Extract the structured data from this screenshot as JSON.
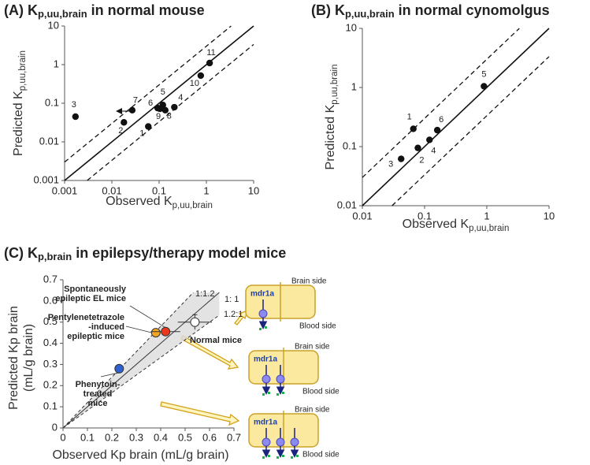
{
  "chart_data": [
    {
      "type": "log-scatter",
      "title": {
        "prefix": "(A) K",
        "subscript": "p,uu,brain",
        "suffix": " in normal mouse"
      },
      "x_label": {
        "text": "Observed K",
        "subscript": "p,uu,brain"
      },
      "y_label": {
        "text": "Predicted K",
        "subscript": "p,uu,brain"
      },
      "log_scale": true,
      "xlim": [
        0.001,
        10
      ],
      "ylim": [
        0.001,
        10
      ],
      "xticks": [
        0.001,
        0.01,
        0.1,
        1,
        10
      ],
      "yticks": [
        0.001,
        0.01,
        0.1,
        1,
        10
      ],
      "x": [
        0.059,
        0.018,
        0.0017,
        0.21,
        0.12,
        0.093,
        0.027,
        0.135,
        0.104,
        0.76,
        1.17
      ],
      "values": [
        0.025,
        0.032,
        0.045,
        0.079,
        0.09,
        0.075,
        0.066,
        0.066,
        0.072,
        0.52,
        1.1
      ],
      "point_labels": [
        "1",
        "2",
        "3",
        "4",
        "5",
        "6",
        "7",
        "8",
        "9",
        "10",
        "11"
      ],
      "color": "#111111",
      "reference_lines": [
        {
          "fold": 1,
          "style": "solid"
        },
        {
          "fold": 3,
          "style": "dashed"
        },
        {
          "fold": 0.333,
          "style": "dashed"
        }
      ]
    },
    {
      "type": "log-scatter",
      "title": {
        "prefix": "(B) K",
        "subscript": "p,uu,brain",
        "suffix": " in normal cynomolgus"
      },
      "x_label": {
        "text": "Observed K",
        "subscript": "p,uu,brain"
      },
      "y_label": {
        "text": "Predicted K",
        "subscript": "p,uu,brain"
      },
      "log_scale": true,
      "xlim": [
        0.01,
        10
      ],
      "ylim": [
        0.01,
        10
      ],
      "xticks": [
        0.01,
        0.1,
        1,
        10
      ],
      "yticks": [
        0.01,
        0.1,
        1,
        10
      ],
      "x": [
        0.066,
        0.078,
        0.042,
        0.12,
        0.9,
        0.16
      ],
      "values": [
        0.2,
        0.095,
        0.062,
        0.13,
        1.05,
        0.19
      ],
      "point_labels": [
        "1",
        "2",
        "3",
        "4",
        "5",
        "6"
      ],
      "color": "#111111",
      "reference_lines": [
        {
          "fold": 1,
          "style": "solid"
        },
        {
          "fold": 3,
          "style": "dashed"
        },
        {
          "fold": 0.333,
          "style": "dashed"
        }
      ]
    },
    {
      "type": "error-scatter",
      "title": {
        "prefix": "(C) K",
        "subscript": "p,brain",
        "suffix": " in epilepsy/therapy model mice"
      },
      "x_label": "Observed Kp brain (mL/g brain)",
      "y_label": [
        "Predicted Kp brain",
        "(mL/g brain)"
      ],
      "xlim": [
        0,
        0.7
      ],
      "ylim": [
        0,
        0.7
      ],
      "xticks": [
        0,
        0.1,
        0.2,
        0.3,
        0.4,
        0.5,
        0.6,
        0.7
      ],
      "yticks": [
        0,
        0.1,
        0.2,
        0.3,
        0.4,
        0.5,
        0.6,
        0.7
      ],
      "x": [
        0.23,
        0.38,
        0.42,
        0.54
      ],
      "values": [
        0.28,
        0.45,
        0.455,
        0.5
      ],
      "x_errors": [
        0.01,
        0.015,
        0.06,
        0.07
      ],
      "y_errors": [
        0.01,
        0.01,
        0.015,
        0.035
      ],
      "colors": [
        "#2f5fd0",
        "#f5a623",
        "#e8391e",
        "#ffffff"
      ],
      "reference_end": 0.64,
      "reference_lines": [
        {
          "slope": 1.2,
          "label": "1:1.2",
          "style": "dashed"
        },
        {
          "slope": 1,
          "label": "1: 1",
          "style": "solid"
        },
        {
          "slope": 0.833,
          "label": "1.2:1",
          "style": "dashed"
        }
      ],
      "annotations": [
        {
          "lines": [
            "Spontaneously",
            "epileptic EL mice"
          ]
        },
        {
          "lines": [
            "Pentylenetetrazole",
            "-induced",
            "epileptic mice"
          ]
        },
        {
          "lines": [
            "Normal mice"
          ]
        },
        {
          "lines": [
            "Phenytoin-",
            "treated",
            "mice"
          ]
        }
      ]
    }
  ],
  "diagrams": [
    {
      "top": "Brain side",
      "transporter": "mdr1a",
      "bottom": "Blood side"
    },
    {
      "top": "Brain side",
      "transporter": "mdr1a",
      "bottom": "Blood side"
    },
    {
      "top": "Brain side",
      "transporter": "mdr1a",
      "bottom": "Blood side"
    }
  ]
}
